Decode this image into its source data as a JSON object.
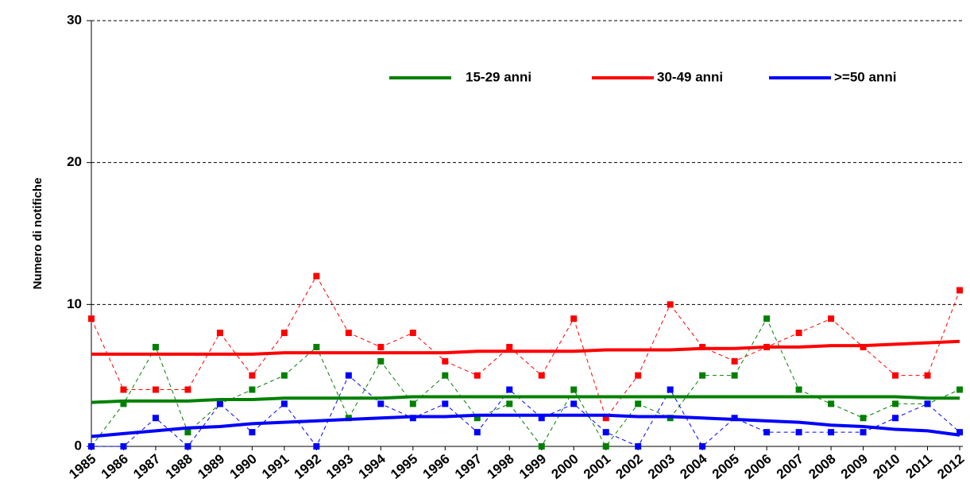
{
  "chart_data": {
    "type": "line",
    "y_label": "Numero di notifiche",
    "categories": [
      "1985",
      "1986",
      "1987",
      "1988",
      "1989",
      "1990",
      "1991",
      "1992",
      "1993",
      "1994",
      "1995",
      "1996",
      "1997",
      "1998",
      "1999",
      "2000",
      "2001",
      "2002",
      "2003",
      "2004",
      "2005",
      "2006",
      "2007",
      "2008",
      "2009",
      "2010",
      "2011",
      "2012"
    ],
    "series": [
      {
        "name": "15-29 anni",
        "color": "#008000",
        "values": [
          0,
          3,
          7,
          1,
          3,
          4,
          5,
          7,
          2,
          6,
          3,
          5,
          2,
          3,
          0,
          4,
          0,
          3,
          2,
          5,
          5,
          9,
          4,
          3,
          2,
          3,
          3,
          4
        ],
        "trend": [
          3.1,
          3.2,
          3.2,
          3.2,
          3.3,
          3.3,
          3.4,
          3.4,
          3.4,
          3.4,
          3.5,
          3.5,
          3.5,
          3.5,
          3.5,
          3.5,
          3.5,
          3.5,
          3.5,
          3.5,
          3.5,
          3.5,
          3.5,
          3.5,
          3.5,
          3.5,
          3.4,
          3.4
        ]
      },
      {
        "name": "30-49 anni",
        "color": "#ff0000",
        "values": [
          9,
          4,
          4,
          4,
          8,
          5,
          8,
          12,
          8,
          7,
          8,
          6,
          5,
          7,
          5,
          9,
          2,
          5,
          10,
          7,
          6,
          7,
          8,
          9,
          7,
          5,
          5,
          11
        ],
        "trend": [
          6.5,
          6.5,
          6.5,
          6.5,
          6.5,
          6.5,
          6.6,
          6.6,
          6.6,
          6.6,
          6.6,
          6.6,
          6.7,
          6.7,
          6.7,
          6.7,
          6.8,
          6.8,
          6.8,
          6.9,
          6.9,
          7.0,
          7.0,
          7.1,
          7.1,
          7.2,
          7.3,
          7.4
        ]
      },
      {
        "name": ">=50 anni",
        "color": "#0000ff",
        "values": [
          0,
          0,
          2,
          0,
          3,
          1,
          3,
          0,
          5,
          3,
          2,
          3,
          1,
          4,
          2,
          3,
          1,
          0,
          4,
          0,
          2,
          1,
          1,
          1,
          1,
          2,
          3,
          1
        ],
        "trend": [
          0.7,
          0.9,
          1.1,
          1.3,
          1.4,
          1.6,
          1.7,
          1.8,
          1.9,
          2.0,
          2.1,
          2.1,
          2.2,
          2.2,
          2.2,
          2.2,
          2.2,
          2.1,
          2.1,
          2.0,
          1.9,
          1.8,
          1.7,
          1.5,
          1.4,
          1.2,
          1.1,
          0.8
        ]
      }
    ],
    "ylim": [
      0,
      30
    ],
    "yticks": [
      0,
      10,
      20,
      30
    ],
    "grid": true,
    "legend": "top"
  }
}
